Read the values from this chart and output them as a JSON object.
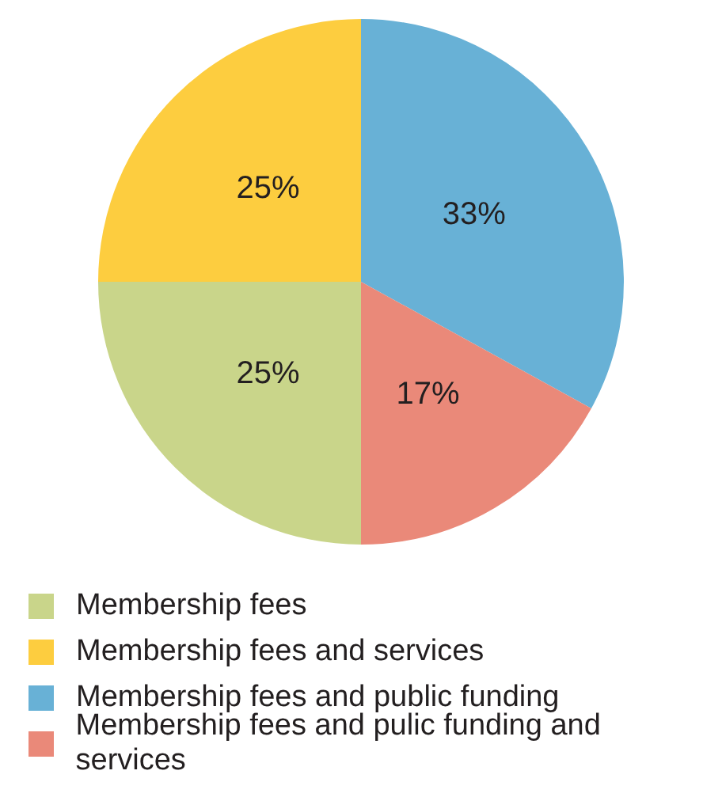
{
  "chart_data": {
    "type": "pie",
    "categories": [
      "Membership fees",
      "Membership fees and services",
      "Membership fees and public funding",
      "Membership fees and pulic funding and services"
    ],
    "values": [
      25,
      25,
      33,
      17
    ],
    "colors": [
      "#c9d58a",
      "#fdcd3f",
      "#68b1d6",
      "#ea8979"
    ],
    "value_labels": [
      "25%",
      "25%",
      "33%",
      "17%"
    ],
    "legend": "bottom"
  }
}
